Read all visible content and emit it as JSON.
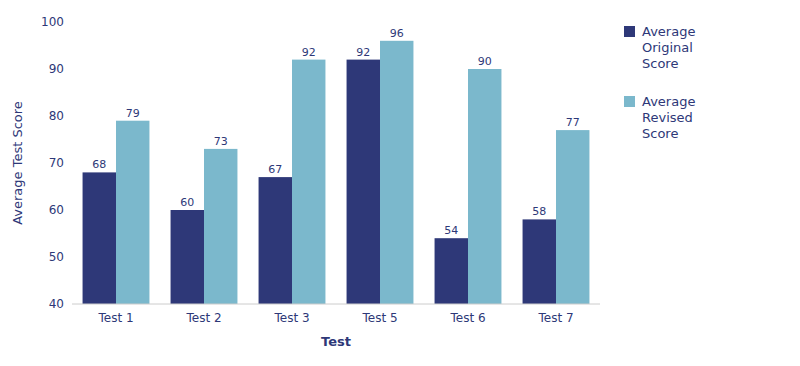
{
  "chart_data": {
    "type": "bar",
    "categories": [
      "Test 1",
      "Test 2",
      "Test 3",
      "Test 5",
      "Test 6",
      "Test 7"
    ],
    "series": [
      {
        "name": "Average\nOriginal\nScore",
        "color": "#2E3878",
        "values": [
          68,
          60,
          67,
          92,
          54,
          58
        ]
      },
      {
        "name": "Average\nRevised\nScore",
        "color": "#7BB8CC",
        "values": [
          79,
          73,
          92,
          96,
          90,
          77
        ]
      }
    ],
    "xlabel": "Test",
    "ylabel": "Average Test Score",
    "ylim": [
      40,
      100
    ],
    "yticks": [
      40,
      50,
      60,
      70,
      80,
      90,
      100
    ],
    "grid": false,
    "data_labels": true,
    "legend": "right"
  }
}
